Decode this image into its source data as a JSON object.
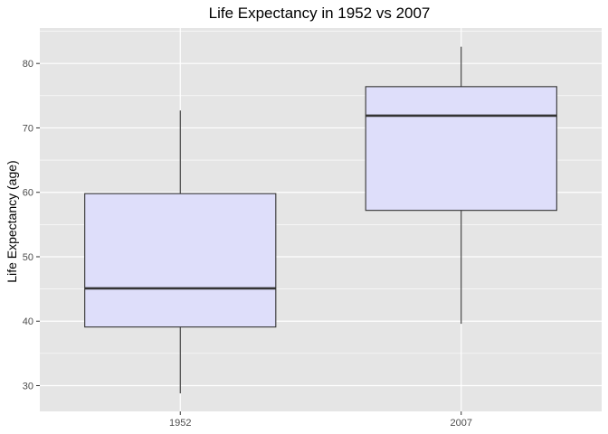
{
  "chart_data": {
    "type": "boxplot",
    "title": "Life Expectancy in 1952 vs 2007",
    "xlabel": "",
    "ylabel": "Life Expectancy (age)",
    "categories": [
      "1952",
      "2007"
    ],
    "boxes": [
      {
        "category": "1952",
        "whisker_low": 28.8,
        "q1": 39.1,
        "median": 45.1,
        "q3": 59.8,
        "whisker_high": 72.7
      },
      {
        "category": "2007",
        "whisker_low": 39.6,
        "q1": 57.2,
        "median": 71.9,
        "q3": 76.4,
        "whisker_high": 82.6
      }
    ],
    "yticks": [
      30,
      40,
      50,
      60,
      70,
      80
    ],
    "ylim": [
      26,
      85.5
    ],
    "grid": true,
    "colors": {
      "panel_background": "#e5e5e5",
      "grid": "#ffffff",
      "box_fill": "#dedefa",
      "box_stroke": "#333333",
      "tick_text": "#4d4d4d"
    }
  }
}
